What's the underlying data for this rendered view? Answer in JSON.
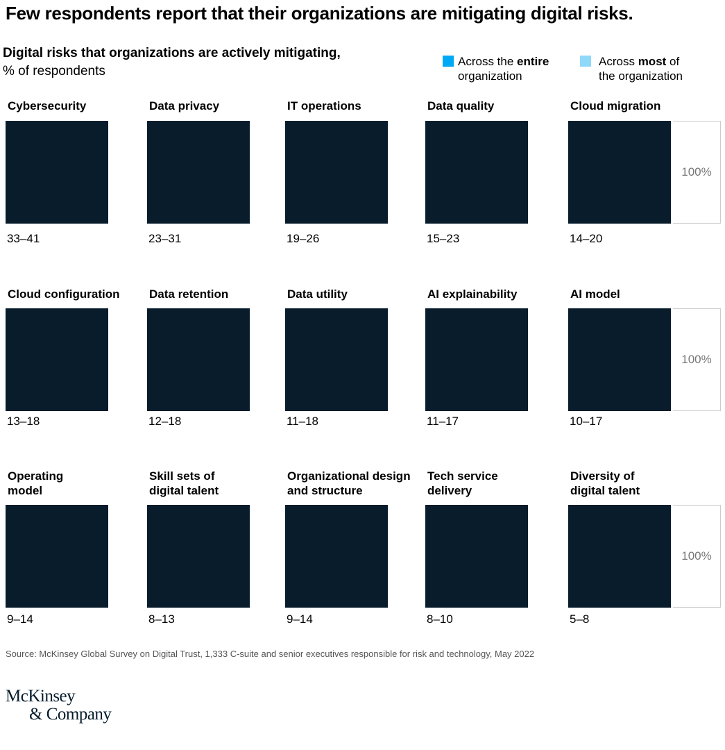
{
  "title": "Few respondents report that their organizations are mitigating digital risks.",
  "subtitle": "Digital risks that organizations are actively mitigating,",
  "unit": "% of respondents",
  "legend": [
    {
      "pre": "Across the ",
      "bold": "entire",
      "post": "",
      "line2": "organization",
      "color": "#00a9f4"
    },
    {
      "pre": "Across ",
      "bold": "most",
      "post": " of",
      "line2": "the organization",
      "color": "#8fd8f9"
    }
  ],
  "reference_label": "100%",
  "chart_data": {
    "type": "table",
    "title": "Digital risks that organizations are actively mitigating, % of respondents",
    "series": [
      {
        "name": "Across the entire organization"
      },
      {
        "name": "Across most of the organization"
      }
    ],
    "items": [
      {
        "label": "Cybersecurity",
        "range": "33–41",
        "low": 33,
        "high": 41
      },
      {
        "label": "Data privacy",
        "range": "23–31",
        "low": 23,
        "high": 31
      },
      {
        "label": "IT operations",
        "range": "19–26",
        "low": 19,
        "high": 26
      },
      {
        "label": "Data quality",
        "range": "15–23",
        "low": 15,
        "high": 23
      },
      {
        "label": "Cloud migration",
        "range": "14–20",
        "low": 14,
        "high": 20
      },
      {
        "label": "Cloud configuration",
        "range": "13–18",
        "low": 13,
        "high": 18
      },
      {
        "label": "Data retention",
        "range": "12–18",
        "low": 12,
        "high": 18
      },
      {
        "label": "Data utility",
        "range": "11–18",
        "low": 11,
        "high": 18
      },
      {
        "label": "AI explainability",
        "range": "11–17",
        "low": 11,
        "high": 17
      },
      {
        "label": "AI model",
        "range": "10–17",
        "low": 10,
        "high": 17
      },
      {
        "label": "Operating model",
        "range": "9–14",
        "low": 9,
        "high": 14
      },
      {
        "label": "Skill sets of digital talent",
        "range": "8–13",
        "low": 8,
        "high": 13
      },
      {
        "label": "Organizational design and structure",
        "range": "9–14",
        "low": 9,
        "high": 14
      },
      {
        "label": "Tech service delivery",
        "range": "8–10",
        "low": 8,
        "high": 10
      },
      {
        "label": "Diversity of digital talent",
        "range": "5–8",
        "low": 5,
        "high": 8
      }
    ]
  },
  "source": "Source: McKinsey Global Survey on Digital Trust, 1,333 C-suite and senior executives responsible for risk and technology, May 2022",
  "logo": {
    "line1": "McKinsey",
    "line2": "& Company"
  }
}
